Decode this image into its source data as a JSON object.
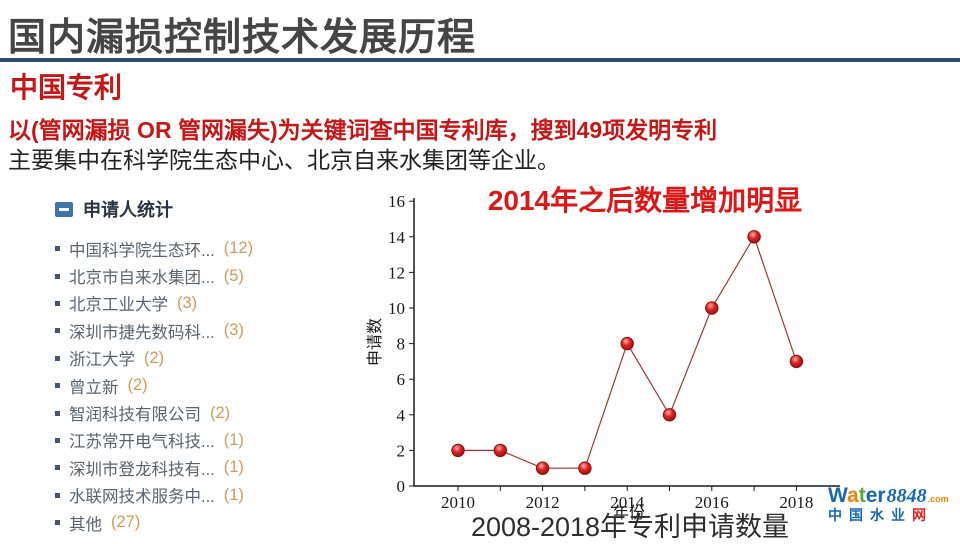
{
  "slide": {
    "title": "国内漏损控制技术发展历程",
    "subtitle": "中国专利",
    "keyword_line": "以(管网漏损 OR 管网漏失)为关键词查中国专利库，搜到49项发明专利",
    "summary_line": "主要集中在科学院生态中心、北京自来水集团等企业。",
    "caption": "2008-2018年专利申请数量"
  },
  "applicant_panel": {
    "header": "申请人统计",
    "items": [
      {
        "name": "中国科学院生态环...",
        "count": "(12)"
      },
      {
        "name": "北京市自来水集团...",
        "count": "(5)"
      },
      {
        "name": "北京工业大学",
        "count": "(3)"
      },
      {
        "name": "深圳市捷先数码科...",
        "count": "(3)"
      },
      {
        "name": "浙江大学",
        "count": "(2)"
      },
      {
        "name": "曾立新",
        "count": "(2)"
      },
      {
        "name": "智润科技有限公司",
        "count": "(2)"
      },
      {
        "name": "江苏常开电气科技...",
        "count": "(1)"
      },
      {
        "name": "深圳市登龙科技有...",
        "count": "(1)"
      },
      {
        "name": "水联网技术服务中...",
        "count": "(1)"
      },
      {
        "name": "其他",
        "count": "(27)"
      }
    ]
  },
  "chart_data": {
    "type": "line",
    "annotation": "2014年之后数量增加明显",
    "x": [
      2010,
      2011,
      2012,
      2013,
      2014,
      2015,
      2016,
      2017,
      2018
    ],
    "values": [
      2,
      2,
      1,
      1,
      8,
      4,
      10,
      14,
      7
    ],
    "xlabel": "年份",
    "ylabel": "申请数",
    "ylim": [
      0,
      16
    ],
    "ytick_step": 2,
    "xticks_labeled": [
      2010,
      2012,
      2014,
      2016,
      2018
    ],
    "grid": false,
    "legend": "none",
    "marker": "red-sphere"
  },
  "logo": {
    "word_letters": [
      {
        "ch": "W",
        "color_class": "c-blue"
      },
      {
        "ch": "a",
        "color_class": "c-orange"
      },
      {
        "ch": "t",
        "color_class": "c-green"
      },
      {
        "ch": "e",
        "color_class": "c-blue"
      },
      {
        "ch": "r",
        "color_class": "c-blue"
      }
    ],
    "number": "8848",
    "tld": ".com",
    "tagline_main": "中国水业",
    "tagline_last": "网"
  },
  "colors": {
    "title_gray": "#454545",
    "rule_navy": "#2f4e6e",
    "accent_red": "#c81616",
    "body_black": "#222222",
    "panel_header": "#2b3440",
    "panel_text": "#5a646e",
    "count_orange": "#d79757",
    "icon_blue": "#3c74ad",
    "chart_axis": "#1a1a1a",
    "chart_line": "#a83232",
    "point_red": "#e02020",
    "annotation_red": "#e01515",
    "logo_blue": "#1668b3",
    "logo_orange": "#f08300",
    "logo_green": "#58a93c",
    "logo_red": "#e02020"
  }
}
